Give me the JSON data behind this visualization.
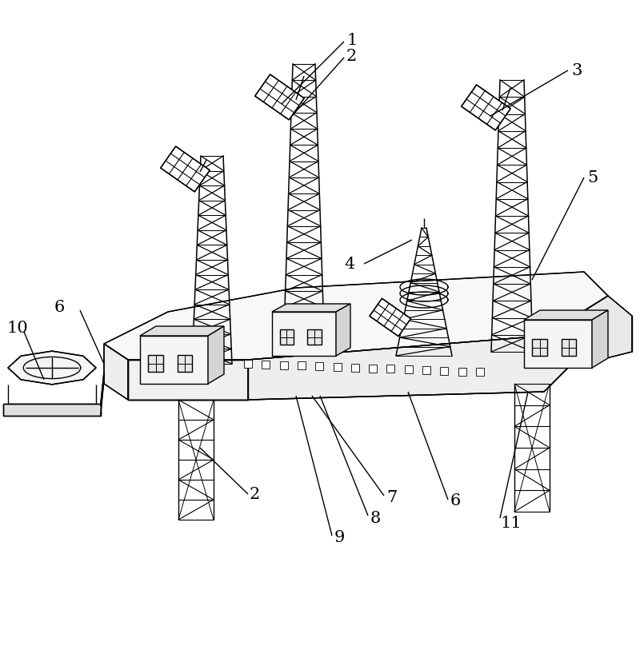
{
  "background_color": "#ffffff",
  "line_color": "#000000",
  "line_width": 1.0,
  "fig_width": 8.0,
  "fig_height": 8.08,
  "label_fontsize": 15
}
